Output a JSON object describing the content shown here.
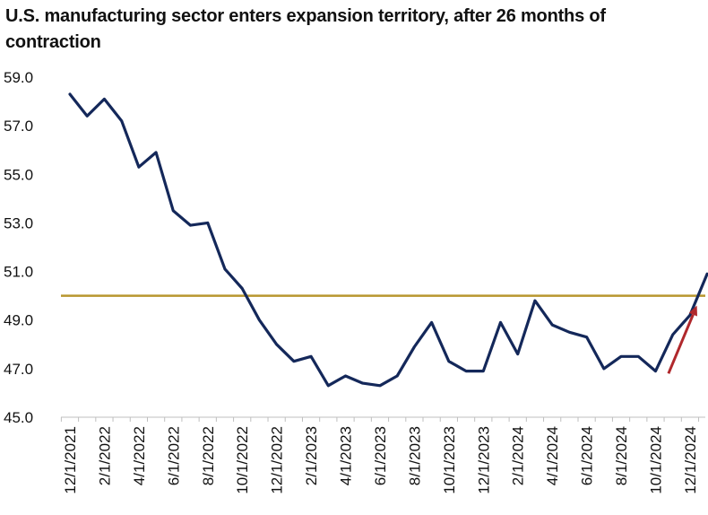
{
  "chart_data": {
    "type": "line",
    "title": "U.S. manufacturing sector enters expansion territory, after 26 months of contraction",
    "xlabel": "",
    "ylabel": "",
    "ylim": [
      45.0,
      59.0
    ],
    "y_ticks": [
      "59.0",
      "57.0",
      "55.0",
      "53.0",
      "51.0",
      "49.0",
      "47.0",
      "45.0"
    ],
    "x_tick_labels": [
      "12/1/2021",
      "2/1/2022",
      "4/1/2022",
      "6/1/2022",
      "8/1/2022",
      "10/1/2022",
      "12/1/2022",
      "2/1/2023",
      "4/1/2023",
      "6/1/2023",
      "8/1/2023",
      "10/1/2023",
      "12/1/2023",
      "2/1/2024",
      "4/1/2024",
      "6/1/2024",
      "8/1/2024",
      "10/1/2024",
      "12/1/2024"
    ],
    "x": [
      "12/1/2021",
      "1/1/2022",
      "2/1/2022",
      "3/1/2022",
      "4/1/2022",
      "5/1/2022",
      "6/1/2022",
      "7/1/2022",
      "8/1/2022",
      "9/1/2022",
      "10/1/2022",
      "11/1/2022",
      "12/1/2022",
      "1/1/2023",
      "2/1/2023",
      "3/1/2023",
      "4/1/2023",
      "5/1/2023",
      "6/1/2023",
      "7/1/2023",
      "8/1/2023",
      "9/1/2023",
      "10/1/2023",
      "11/1/2023",
      "12/1/2023",
      "1/1/2024",
      "2/1/2024",
      "3/1/2024",
      "4/1/2024",
      "5/1/2024",
      "6/1/2024",
      "7/1/2024",
      "8/1/2024",
      "9/1/2024",
      "10/1/2024",
      "11/1/2024",
      "12/1/2024",
      "1/1/2025"
    ],
    "series": [
      {
        "values": [
          58.3,
          57.4,
          58.1,
          57.2,
          55.3,
          55.9,
          53.5,
          52.9,
          53.0,
          51.1,
          50.3,
          49.0,
          48.0,
          47.3,
          47.5,
          46.3,
          46.7,
          46.4,
          46.3,
          46.7,
          47.9,
          48.9,
          47.3,
          46.9,
          46.9,
          48.9,
          47.6,
          49.8,
          48.8,
          48.5,
          48.3,
          47.0,
          47.5,
          47.5,
          46.9,
          48.4,
          49.2,
          50.9
        ]
      }
    ],
    "reference_line": {
      "value": 50.0
    },
    "grid": false,
    "legend": "none",
    "colors": {
      "line": "#14285a",
      "reference": "#b8962e",
      "arrow": "#b0282c",
      "axis": "#bfbfbf"
    }
  }
}
